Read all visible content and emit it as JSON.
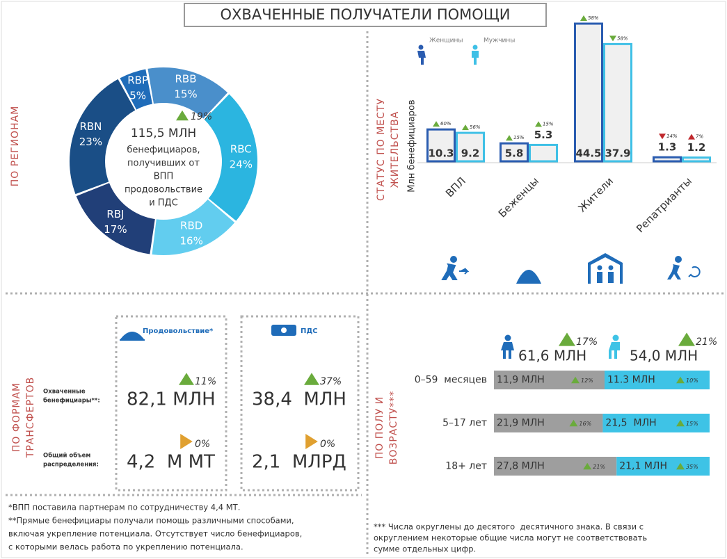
{
  "title": "ОХВАЧЕННЫЕ ПОЛУЧАТЕЛИ ПОМОЩИ",
  "regions": {
    "section_label": "ПО РЕГИОНАМ",
    "categories": [
      "RBB",
      "RBC",
      "RBD",
      "RBJ",
      "RBN",
      "RBP"
    ],
    "values": [
      15,
      24,
      16,
      17,
      23,
      5
    ],
    "value_labels": [
      "15%",
      "24%",
      "16%",
      "17%",
      "23%",
      "5%"
    ],
    "colors": [
      "#4a8fcb",
      "#2bb5e0",
      "#62cdef",
      "#213f78",
      "#1a4e86",
      "#1f6cb9"
    ],
    "center": {
      "change": "19%",
      "total": "115,5 МЛН",
      "text": [
        "бенефициаров,",
        "получивших  от",
        "ВПП",
        "продовольствие",
        "и ПДС"
      ]
    }
  },
  "residence": {
    "section_label": [
      "СТАТУС ПО МЕСТУ",
      "ЖИТЕЛЬСТВА"
    ],
    "y_label": "Млн бенефициаров",
    "categories": [
      "ВПЛ",
      "Беженцы",
      "Жители",
      "Репатрианты"
    ],
    "series": [
      {
        "name": "Женщины",
        "color": "#2a5cb0",
        "values": [
          10.3,
          5.8,
          44.5,
          1.3
        ],
        "changes": [
          "60%",
          "15%",
          "58%",
          "14%"
        ],
        "change_directions": [
          "up",
          "up",
          "up",
          "down"
        ],
        "change_colors": [
          "#6aab3c",
          "#6aab3c",
          "#6aab3c",
          "#c0282d"
        ]
      },
      {
        "name": "Мужчины",
        "color": "#3fc0e6",
        "values": [
          9.2,
          5.3,
          37.9,
          1.2
        ],
        "changes": [
          "56%",
          "15%",
          "58%",
          "7%"
        ],
        "change_directions": [
          "up",
          "up",
          "down",
          "up"
        ],
        "change_colors": [
          "#6aab3c",
          "#6aab3c",
          "#6aab3c",
          "#c0282d"
        ]
      }
    ]
  },
  "transfers": {
    "section_label": [
      "ПО ФОРМАМ",
      "ТРАНСФЕРТОВ"
    ],
    "row_labels": [
      [
        "Охваченные",
        "бенефициары**:"
      ],
      [
        "Общий объем",
        "распределения:"
      ]
    ],
    "columns": [
      {
        "name": "Продовольствие*",
        "values": [
          "82,1 МЛН",
          "4,2  М МТ"
        ],
        "changes": [
          "11%",
          "0%"
        ],
        "change_directions": [
          "up",
          "right"
        ]
      },
      {
        "name": "ПДС",
        "values": [
          "38,4  МЛН",
          "2,1  МЛРД"
        ],
        "changes": [
          "37%",
          "0%"
        ],
        "change_directions": [
          "up",
          "right"
        ]
      }
    ]
  },
  "age_sex": {
    "section_label": [
      "ПО ПОЛУ И",
      "ВОЗРАСТУ***"
    ],
    "totals": [
      {
        "value": "61,6 МЛН",
        "change": "17%"
      },
      {
        "value": "54,0 МЛН",
        "change": "21%"
      }
    ],
    "categories": [
      "0–59  месяцев",
      "5–17 лет",
      "18+ лет"
    ],
    "series": [
      {
        "color": "#9e9e9e",
        "values": [
          11.9,
          21.9,
          27.8
        ],
        "value_labels": [
          "11,9 МЛН",
          "21,9 МЛН",
          "27,8 МЛН"
        ],
        "changes": [
          "12%",
          "16%",
          "21%"
        ]
      },
      {
        "color": "#3ec3e6",
        "values": [
          11.3,
          21.5,
          21.1
        ],
        "value_labels": [
          "11.3 МЛН",
          "21,5  МЛН",
          "21,1 МЛН"
        ],
        "changes": [
          "10%",
          "15%",
          "35%"
        ]
      }
    ]
  },
  "footnotes": {
    "left": [
      "*ВПП поставила партнерам по сотрудничеству 4,4 МТ.",
      "**Прямые бенефициары получали помощь различными способами,",
      "включая укрепление потенциала. Отсутствует число бенефициаров,",
      "с которыми велась работа по укреплению потенциала."
    ],
    "right": [
      "*** Числа округлены до десятого  десятичного знака. В связи с",
      "округлением некоторые общие числа могут не соответствовать",
      "сумме отдельных цифр."
    ]
  }
}
